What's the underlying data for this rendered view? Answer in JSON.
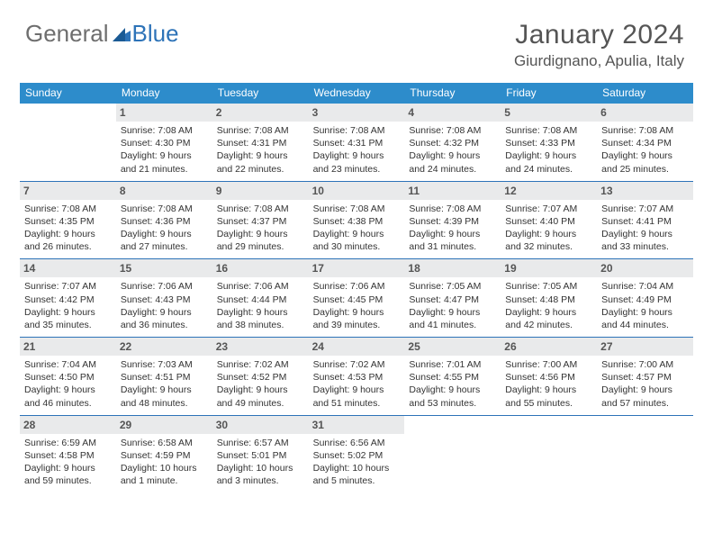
{
  "logo": {
    "text1": "General",
    "text2": "Blue"
  },
  "title": "January 2024",
  "location": "Giurdignano, Apulia, Italy",
  "colors": {
    "header_bar": "#2d8ccb",
    "row_divider": "#2d73b8",
    "daynum_bg": "#e9eaeb",
    "logo_gray": "#6e6e6e",
    "logo_blue": "#2d73b8",
    "text": "#333333",
    "title_text": "#555555"
  },
  "days_of_week": [
    "Sunday",
    "Monday",
    "Tuesday",
    "Wednesday",
    "Thursday",
    "Friday",
    "Saturday"
  ],
  "weeks": [
    [
      {
        "day": "",
        "sunrise": "",
        "sunset": "",
        "daylight": ""
      },
      {
        "day": "1",
        "sunrise": "Sunrise: 7:08 AM",
        "sunset": "Sunset: 4:30 PM",
        "daylight": "Daylight: 9 hours and 21 minutes."
      },
      {
        "day": "2",
        "sunrise": "Sunrise: 7:08 AM",
        "sunset": "Sunset: 4:31 PM",
        "daylight": "Daylight: 9 hours and 22 minutes."
      },
      {
        "day": "3",
        "sunrise": "Sunrise: 7:08 AM",
        "sunset": "Sunset: 4:31 PM",
        "daylight": "Daylight: 9 hours and 23 minutes."
      },
      {
        "day": "4",
        "sunrise": "Sunrise: 7:08 AM",
        "sunset": "Sunset: 4:32 PM",
        "daylight": "Daylight: 9 hours and 24 minutes."
      },
      {
        "day": "5",
        "sunrise": "Sunrise: 7:08 AM",
        "sunset": "Sunset: 4:33 PM",
        "daylight": "Daylight: 9 hours and 24 minutes."
      },
      {
        "day": "6",
        "sunrise": "Sunrise: 7:08 AM",
        "sunset": "Sunset: 4:34 PM",
        "daylight": "Daylight: 9 hours and 25 minutes."
      }
    ],
    [
      {
        "day": "7",
        "sunrise": "Sunrise: 7:08 AM",
        "sunset": "Sunset: 4:35 PM",
        "daylight": "Daylight: 9 hours and 26 minutes."
      },
      {
        "day": "8",
        "sunrise": "Sunrise: 7:08 AM",
        "sunset": "Sunset: 4:36 PM",
        "daylight": "Daylight: 9 hours and 27 minutes."
      },
      {
        "day": "9",
        "sunrise": "Sunrise: 7:08 AM",
        "sunset": "Sunset: 4:37 PM",
        "daylight": "Daylight: 9 hours and 29 minutes."
      },
      {
        "day": "10",
        "sunrise": "Sunrise: 7:08 AM",
        "sunset": "Sunset: 4:38 PM",
        "daylight": "Daylight: 9 hours and 30 minutes."
      },
      {
        "day": "11",
        "sunrise": "Sunrise: 7:08 AM",
        "sunset": "Sunset: 4:39 PM",
        "daylight": "Daylight: 9 hours and 31 minutes."
      },
      {
        "day": "12",
        "sunrise": "Sunrise: 7:07 AM",
        "sunset": "Sunset: 4:40 PM",
        "daylight": "Daylight: 9 hours and 32 minutes."
      },
      {
        "day": "13",
        "sunrise": "Sunrise: 7:07 AM",
        "sunset": "Sunset: 4:41 PM",
        "daylight": "Daylight: 9 hours and 33 minutes."
      }
    ],
    [
      {
        "day": "14",
        "sunrise": "Sunrise: 7:07 AM",
        "sunset": "Sunset: 4:42 PM",
        "daylight": "Daylight: 9 hours and 35 minutes."
      },
      {
        "day": "15",
        "sunrise": "Sunrise: 7:06 AM",
        "sunset": "Sunset: 4:43 PM",
        "daylight": "Daylight: 9 hours and 36 minutes."
      },
      {
        "day": "16",
        "sunrise": "Sunrise: 7:06 AM",
        "sunset": "Sunset: 4:44 PM",
        "daylight": "Daylight: 9 hours and 38 minutes."
      },
      {
        "day": "17",
        "sunrise": "Sunrise: 7:06 AM",
        "sunset": "Sunset: 4:45 PM",
        "daylight": "Daylight: 9 hours and 39 minutes."
      },
      {
        "day": "18",
        "sunrise": "Sunrise: 7:05 AM",
        "sunset": "Sunset: 4:47 PM",
        "daylight": "Daylight: 9 hours and 41 minutes."
      },
      {
        "day": "19",
        "sunrise": "Sunrise: 7:05 AM",
        "sunset": "Sunset: 4:48 PM",
        "daylight": "Daylight: 9 hours and 42 minutes."
      },
      {
        "day": "20",
        "sunrise": "Sunrise: 7:04 AM",
        "sunset": "Sunset: 4:49 PM",
        "daylight": "Daylight: 9 hours and 44 minutes."
      }
    ],
    [
      {
        "day": "21",
        "sunrise": "Sunrise: 7:04 AM",
        "sunset": "Sunset: 4:50 PM",
        "daylight": "Daylight: 9 hours and 46 minutes."
      },
      {
        "day": "22",
        "sunrise": "Sunrise: 7:03 AM",
        "sunset": "Sunset: 4:51 PM",
        "daylight": "Daylight: 9 hours and 48 minutes."
      },
      {
        "day": "23",
        "sunrise": "Sunrise: 7:02 AM",
        "sunset": "Sunset: 4:52 PM",
        "daylight": "Daylight: 9 hours and 49 minutes."
      },
      {
        "day": "24",
        "sunrise": "Sunrise: 7:02 AM",
        "sunset": "Sunset: 4:53 PM",
        "daylight": "Daylight: 9 hours and 51 minutes."
      },
      {
        "day": "25",
        "sunrise": "Sunrise: 7:01 AM",
        "sunset": "Sunset: 4:55 PM",
        "daylight": "Daylight: 9 hours and 53 minutes."
      },
      {
        "day": "26",
        "sunrise": "Sunrise: 7:00 AM",
        "sunset": "Sunset: 4:56 PM",
        "daylight": "Daylight: 9 hours and 55 minutes."
      },
      {
        "day": "27",
        "sunrise": "Sunrise: 7:00 AM",
        "sunset": "Sunset: 4:57 PM",
        "daylight": "Daylight: 9 hours and 57 minutes."
      }
    ],
    [
      {
        "day": "28",
        "sunrise": "Sunrise: 6:59 AM",
        "sunset": "Sunset: 4:58 PM",
        "daylight": "Daylight: 9 hours and 59 minutes."
      },
      {
        "day": "29",
        "sunrise": "Sunrise: 6:58 AM",
        "sunset": "Sunset: 4:59 PM",
        "daylight": "Daylight: 10 hours and 1 minute."
      },
      {
        "day": "30",
        "sunrise": "Sunrise: 6:57 AM",
        "sunset": "Sunset: 5:01 PM",
        "daylight": "Daylight: 10 hours and 3 minutes."
      },
      {
        "day": "31",
        "sunrise": "Sunrise: 6:56 AM",
        "sunset": "Sunset: 5:02 PM",
        "daylight": "Daylight: 10 hours and 5 minutes."
      },
      {
        "day": "",
        "sunrise": "",
        "sunset": "",
        "daylight": ""
      },
      {
        "day": "",
        "sunrise": "",
        "sunset": "",
        "daylight": ""
      },
      {
        "day": "",
        "sunrise": "",
        "sunset": "",
        "daylight": ""
      }
    ]
  ]
}
